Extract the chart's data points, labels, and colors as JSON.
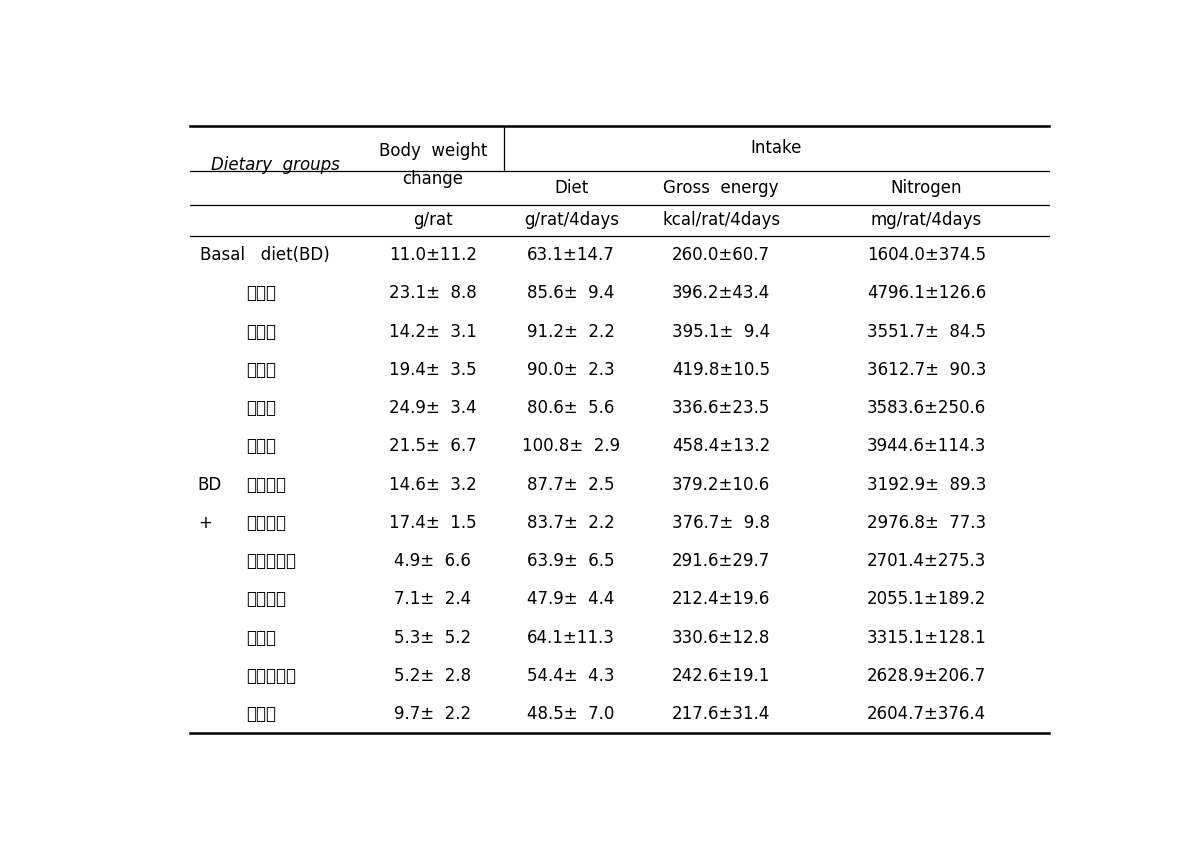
{
  "header": {
    "col0": "Dietary  groups",
    "col1_line1": "Body  weight",
    "col1_line2": "change",
    "col2": "Intake",
    "col2_sub1": "Diet",
    "col2_sub2": "Gross  energy",
    "col2_sub3": "Nitrogen"
  },
  "units": {
    "col1": "g/rat",
    "col2": "g/rat/4days",
    "col3": "kcal/rat/4days",
    "col4": "mg/rat/4days"
  },
  "rows": [
    [
      "Basal   diet(BD)",
      "11.0±11.2",
      "63.1±14.7",
      "260.0±60.7",
      "1604.0±374.5"
    ],
    [
      "설랙탕",
      "23.1±  8.8",
      "85.6±  9.4",
      "396.2±43.4",
      "4796.1±126.6"
    ],
    [
      "육개장",
      "14.2±  3.1",
      "91.2±  2.2",
      "395.1±  9.4",
      "3551.7±  84.5"
    ],
    [
      "삼계탕",
      "19.4±  3.5",
      "90.0±  2.3",
      "419.8±10.5",
      "3612.7±  90.3"
    ],
    [
      "해물탕",
      "24.9±  3.4",
      "80.6±  5.6",
      "336.6±23.5",
      "3583.6±250.6"
    ],
    [
      "갈비탕",
      "21.5±  6.7",
      "100.8±  2.9",
      "458.4±13.2",
      "3944.6±114.3"
    ],
    [
      "김치지개",
      "14.6±  3.2",
      "87.7±  2.5",
      "379.2±10.6",
      "3192.9±  89.3"
    ],
    [
      "된장지개",
      "17.4±  1.5",
      "83.7±  2.2",
      "376.7±  9.8",
      "2976.8±  77.3"
    ],
    [
      "순두부지개",
      "4.9±  6.6",
      "63.9±  6.5",
      "291.6±29.7",
      "2701.4±275.3"
    ],
    [
      "버섯전골",
      "7.1±  2.4",
      "47.9±  4.4",
      "212.4±19.6",
      "2055.1±189.2"
    ],
    [
      "미역국",
      "5.3±  5.2",
      "64.1±11.3",
      "330.6±12.8",
      "3315.1±128.1"
    ],
    [
      "소고기무국",
      "5.2±  2.8",
      "54.4±  4.3",
      "242.6±19.1",
      "2628.9±206.7"
    ],
    [
      "북엇국",
      "9.7±  2.2",
      "48.5±  7.0",
      "217.6±31.4",
      "2604.7±376.4"
    ]
  ],
  "bd_row_idx": 6,
  "plus_row_idx": 7,
  "figsize": [
    11.91,
    8.42
  ],
  "dpi": 100,
  "font_size": 12,
  "bg_color": "white",
  "line_color": "black"
}
